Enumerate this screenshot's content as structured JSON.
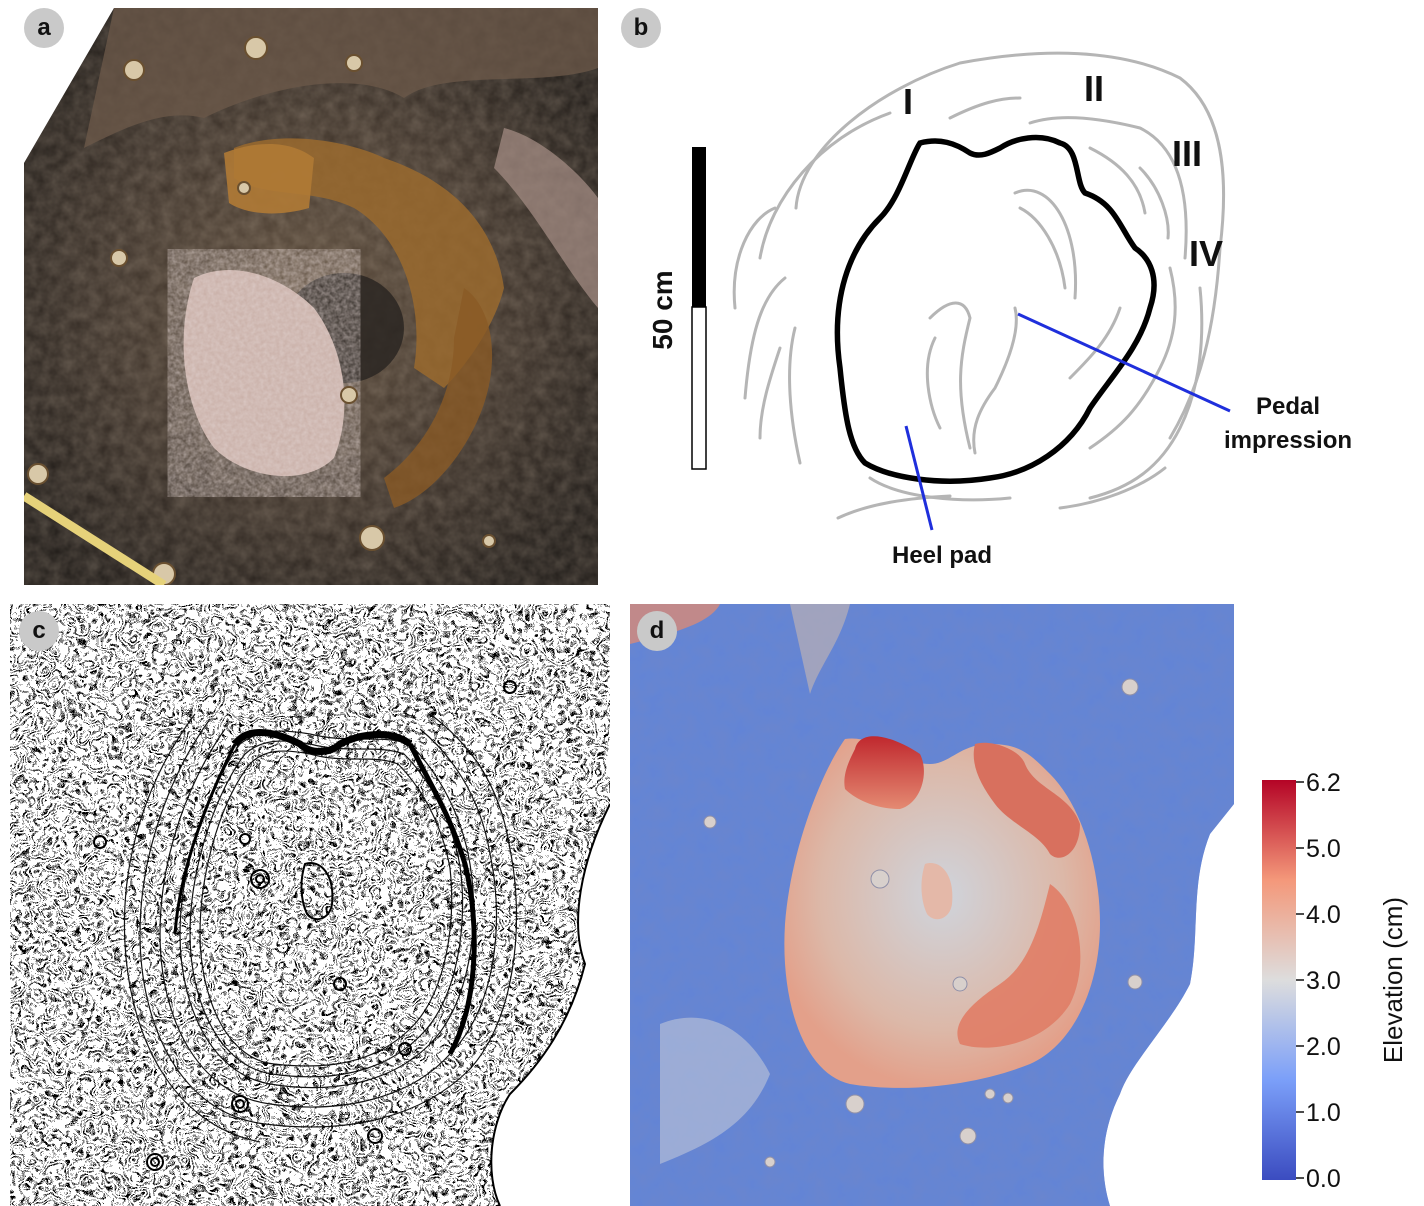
{
  "panels": {
    "a": {
      "label": "a"
    },
    "b": {
      "label": "b",
      "scale_bar_label": "50 cm",
      "ridge_labels": [
        "I",
        "II",
        "III",
        "IV"
      ],
      "annotation_pedal_line1": "Pedal",
      "annotation_pedal_line2": "impression",
      "annotation_heel": "Heel pad",
      "colors": {
        "outline": "#000000",
        "ridges": "#b5b5b5",
        "pointer": "#1f2fdc"
      }
    },
    "c": {
      "label": "c"
    },
    "d": {
      "label": "d",
      "colorbar": {
        "title": "Elevation (cm)",
        "ticks": [
          "6.2",
          "5.0",
          "4.0",
          "3.0",
          "2.0",
          "1.0",
          "0.0"
        ],
        "min_color": "#3b4cc0",
        "mid_color": "#dddddd",
        "max_color": "#b40426"
      }
    }
  }
}
